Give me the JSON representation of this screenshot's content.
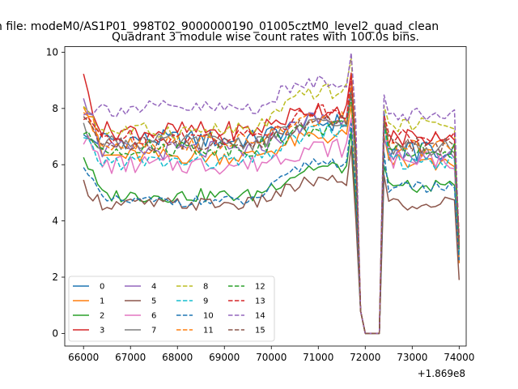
{
  "chart_data": {
    "type": "line",
    "suptitle": "n file: modeM0/AS1P01_998T02_9000000190_01005cztM0_level2_quad_clean",
    "title": "Quadrant 3 module wise count rates with 100.0s bins.",
    "xlabel": "",
    "ylabel": "",
    "x_offset_label": "+1.869e8",
    "xlim": [
      65600,
      74150
    ],
    "ylim": [
      -0.45,
      10.2
    ],
    "xticks": [
      66000,
      67000,
      68000,
      69000,
      70000,
      71000,
      72000,
      73000,
      74000
    ],
    "xtick_labels": [
      "66000",
      "67000",
      "68000",
      "69000",
      "70000",
      "71000",
      "72000",
      "73000",
      "74000"
    ],
    "yticks": [
      0,
      2,
      4,
      6,
      8,
      10
    ],
    "ytick_labels": [
      "0",
      "2",
      "4",
      "6",
      "8",
      "10"
    ],
    "legend_position": "lower-left",
    "x_start": 66000,
    "x_step": 100,
    "gap_index_start": 58,
    "gap_values": [
      6.0,
      0.8,
      0.0,
      0.0,
      0.0,
      0.0,
      6.0
    ],
    "end_values": [
      2.5,
      2.5,
      3.0,
      3.2,
      2.8,
      1.9,
      3.0,
      3.0,
      2.8,
      2.9,
      2.6,
      3.2,
      3.0,
      3.4,
      3.0,
      3.0
    ],
    "series": [
      {
        "name": "0",
        "color": "#1f77b4",
        "dash": "solid",
        "base_pre": 6.9,
        "base_rise": 7.5,
        "base_post": 6.5,
        "noise": 0.35,
        "start": 6.9
      },
      {
        "name": "1",
        "color": "#ff7f0e",
        "dash": "solid",
        "base_pre": 6.3,
        "base_rise": 7.0,
        "base_post": 6.1,
        "noise": 0.3,
        "start": 8.3
      },
      {
        "name": "2",
        "color": "#2ca02c",
        "dash": "solid",
        "base_pre": 4.9,
        "base_rise": 5.9,
        "base_post": 5.2,
        "noise": 0.25,
        "start": 6.3
      },
      {
        "name": "3",
        "color": "#d62728",
        "dash": "solid",
        "base_pre": 7.2,
        "base_rise": 8.0,
        "base_post": 7.0,
        "noise": 0.35,
        "start": 9.0
      },
      {
        "name": "4",
        "color": "#9467bd",
        "dash": "solid",
        "base_pre": 6.5,
        "base_rise": 7.6,
        "base_post": 6.3,
        "noise": 0.35,
        "start": 8.6
      },
      {
        "name": "5",
        "color": "#8c564b",
        "dash": "solid",
        "base_pre": 4.6,
        "base_rise": 5.4,
        "base_post": 4.6,
        "noise": 0.25,
        "start": 5.3
      },
      {
        "name": "6",
        "color": "#e377c2",
        "dash": "solid",
        "base_pre": 6.0,
        "base_rise": 6.6,
        "base_post": 6.2,
        "noise": 0.35,
        "start": 7.0
      },
      {
        "name": "7",
        "color": "#7f7f7f",
        "dash": "solid",
        "base_pre": 6.8,
        "base_rise": 7.4,
        "base_post": 6.6,
        "noise": 0.3,
        "start": 7.2
      },
      {
        "name": "8",
        "color": "#bcbd22",
        "dash": "dashed",
        "base_pre": 7.2,
        "base_rise": 8.6,
        "base_post": 7.4,
        "noise": 0.3,
        "start": 8.2
      },
      {
        "name": "9",
        "color": "#17becf",
        "dash": "dashed",
        "base_pre": 6.1,
        "base_rise": 7.2,
        "base_post": 6.1,
        "noise": 0.3,
        "start": 6.8
      },
      {
        "name": "10",
        "color": "#1f77b4",
        "dash": "dashed",
        "base_pre": 4.7,
        "base_rise": 6.1,
        "base_post": 5.2,
        "noise": 0.2,
        "start": 6.1
      },
      {
        "name": "11",
        "color": "#ff7f0e",
        "dash": "dashed",
        "base_pre": 6.8,
        "base_rise": 7.6,
        "base_post": 6.6,
        "noise": 0.3,
        "start": 8.0
      },
      {
        "name": "12",
        "color": "#2ca02c",
        "dash": "dashed",
        "base_pre": 6.6,
        "base_rise": 7.3,
        "base_post": 6.5,
        "noise": 0.3,
        "start": 7.0
      },
      {
        "name": "13",
        "color": "#d62728",
        "dash": "dashed",
        "base_pre": 7.0,
        "base_rise": 7.9,
        "base_post": 7.0,
        "noise": 0.3,
        "start": 7.6
      },
      {
        "name": "14",
        "color": "#9467bd",
        "dash": "dashed",
        "base_pre": 8.0,
        "base_rise": 9.0,
        "base_post": 7.8,
        "noise": 0.3,
        "start": 8.0
      },
      {
        "name": "15",
        "color": "#8c564b",
        "dash": "dashed",
        "base_pre": 6.7,
        "base_rise": 7.6,
        "base_post": 6.7,
        "noise": 0.3,
        "start": 7.8
      }
    ]
  }
}
